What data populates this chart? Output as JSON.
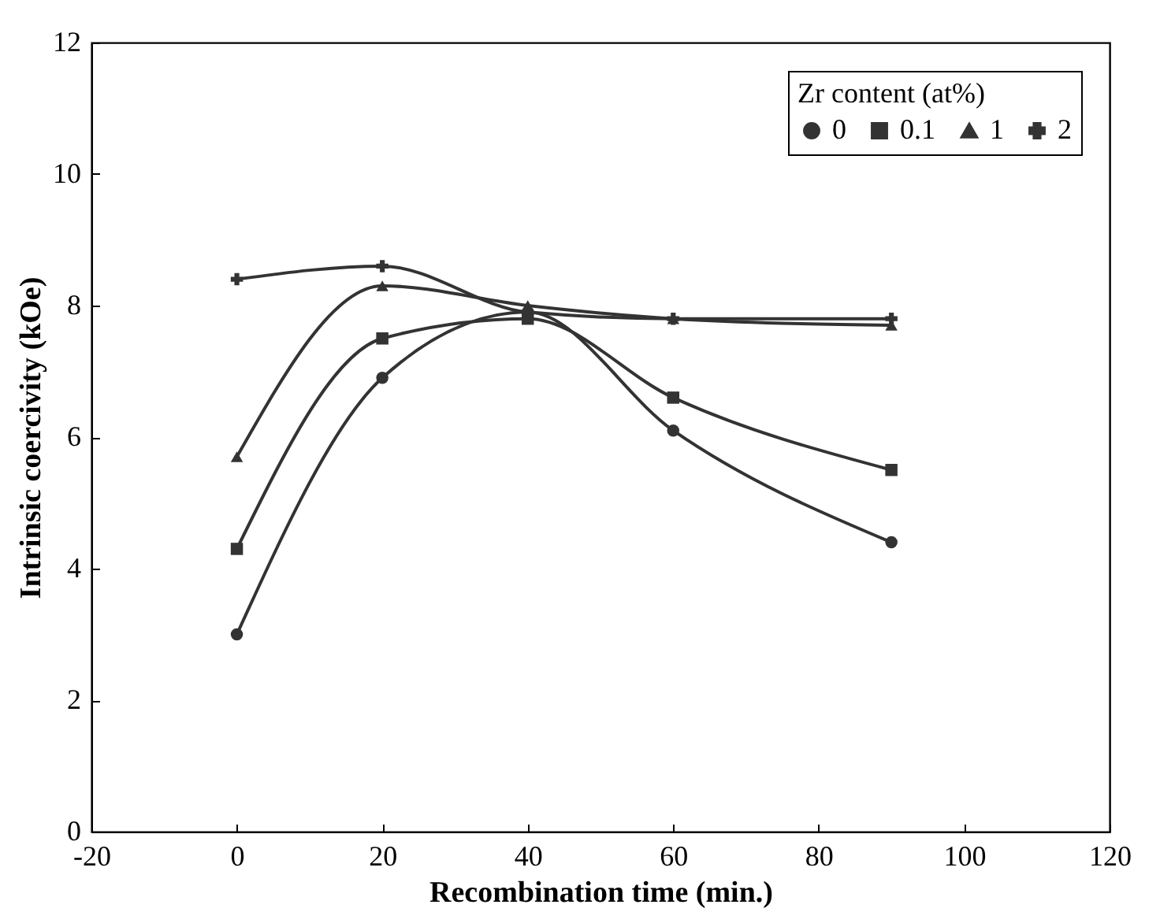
{
  "chart_data": {
    "type": "line",
    "xlabel": "Recombination time (min.)",
    "ylabel": "Intrinsic coercivity (kOe)",
    "legend_title": "Zr content (at%)",
    "legend": "top right",
    "grid": false,
    "line_style": "solid",
    "x": [
      0,
      20,
      40,
      60,
      90
    ],
    "xlim": [
      -20,
      120
    ],
    "xticks": [
      -20,
      0,
      20,
      40,
      60,
      80,
      100,
      120
    ],
    "ylim": [
      0,
      12
    ],
    "yticks": [
      0,
      2,
      4,
      6,
      8,
      10,
      12
    ],
    "series": [
      {
        "name": "0",
        "color": "#333333",
        "marker": "circle",
        "values": [
          3.0,
          6.9,
          7.9,
          6.1,
          4.4
        ]
      },
      {
        "name": "0.1",
        "color": "#333333",
        "marker": "square",
        "values": [
          4.3,
          7.5,
          7.8,
          6.6,
          5.5
        ]
      },
      {
        "name": "1",
        "color": "#333333",
        "marker": "triangle",
        "values": [
          5.7,
          8.3,
          8.0,
          7.8,
          7.7
        ]
      },
      {
        "name": "2",
        "color": "#333333",
        "marker": "cross",
        "values": [
          8.4,
          8.6,
          7.9,
          7.8,
          7.8
        ]
      }
    ]
  }
}
